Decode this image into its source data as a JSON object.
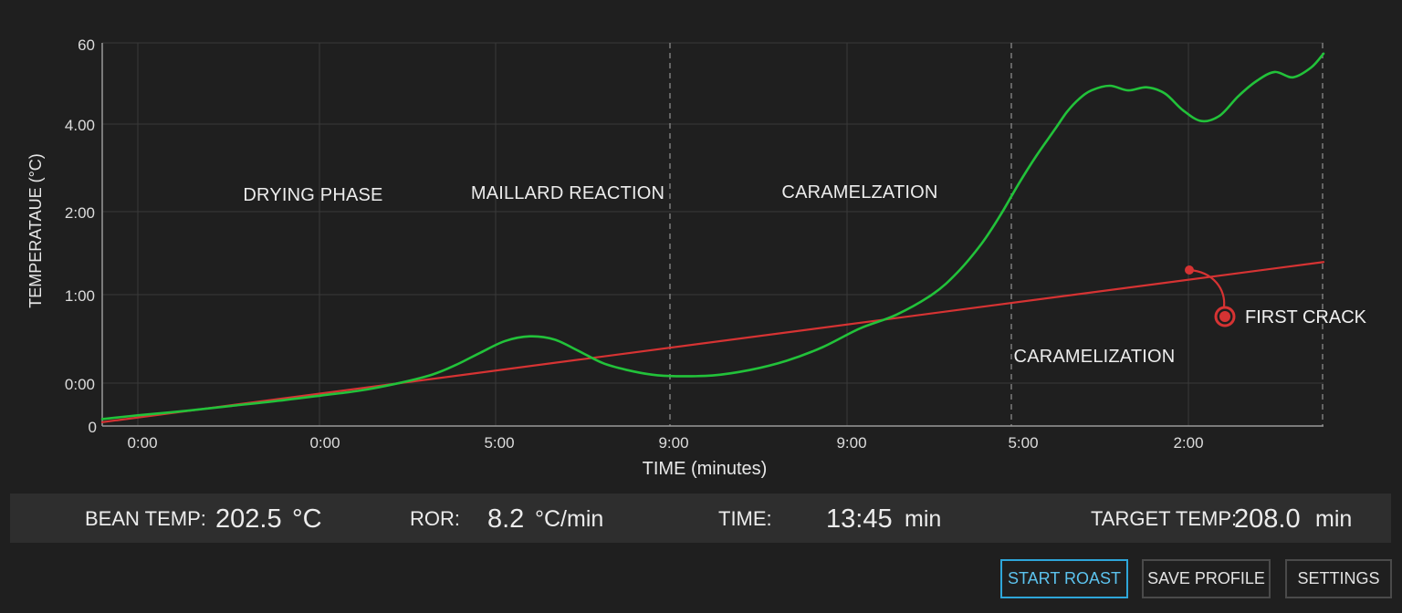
{
  "chart_data": {
    "type": "line",
    "xlabel": "TIME (minutes)",
    "ylabel": "TEMPERATAUE (°C)",
    "x_tick_labels": [
      "0:00",
      "0:00",
      "5:00",
      "9:00",
      "9:00",
      "5:00",
      "2:00"
    ],
    "y_tick_labels": [
      "0",
      "0:00",
      "1:00",
      "2:00",
      "4.00",
      "60"
    ],
    "grid": true,
    "phase_labels": [
      "DRYING PHASE",
      "MAILLARD REACTION",
      "CARAMELZATION",
      "CARAMELIZATION"
    ],
    "series": [
      {
        "color": "#22c23a",
        "x": [
          0,
          0.03,
          0.07,
          0.11,
          0.15,
          0.18,
          0.21,
          0.24,
          0.27,
          0.29,
          0.31,
          0.33,
          0.35,
          0.37,
          0.39,
          0.41,
          0.43,
          0.45,
          0.47,
          0.5,
          0.53,
          0.56,
          0.59,
          0.62,
          0.65,
          0.68,
          0.7,
          0.72,
          0.735,
          0.75,
          0.765,
          0.78,
          0.79,
          0.8,
          0.81,
          0.825,
          0.84,
          0.855,
          0.87,
          0.885,
          0.9,
          0.915,
          0.93,
          0.945,
          0.96,
          0.975,
          0.99,
          1.0
        ],
        "y": [
          0.09,
          0.14,
          0.2,
          0.27,
          0.34,
          0.4,
          0.46,
          0.55,
          0.67,
          0.8,
          0.96,
          1.11,
          1.17,
          1.13,
          0.98,
          0.82,
          0.73,
          0.67,
          0.65,
          0.66,
          0.73,
          0.85,
          1.03,
          1.27,
          1.45,
          1.72,
          2.0,
          2.38,
          2.74,
          3.15,
          3.53,
          3.87,
          4.1,
          4.27,
          4.38,
          4.44,
          4.38,
          4.42,
          4.34,
          4.12,
          3.98,
          4.05,
          4.3,
          4.5,
          4.62,
          4.55,
          4.68,
          4.86
        ]
      },
      {
        "color": "#d63333",
        "x": [
          0,
          1.0
        ],
        "y": [
          0.05,
          2.14
        ]
      }
    ],
    "annotations": [
      {
        "text": "FIRST CRACK",
        "x": 0.89,
        "y": 1.78,
        "color": "#d63333"
      }
    ]
  },
  "status": {
    "bean_temp_label": "BEAN TEMP:",
    "bean_temp_value": "202.5",
    "bean_temp_unit": "°C",
    "ror_label": "ROR:",
    "ror_value": "8.2",
    "ror_unit": "°C/min",
    "time_label": "TIME:",
    "time_value": "13:45",
    "time_unit": "min",
    "target_label": "TARGET TEMP:",
    "target_value": "208.0",
    "target_unit": "min"
  },
  "buttons": {
    "start": "START ROAST",
    "save": "SAVE PROFILE",
    "settings": "SETTINGS"
  },
  "colors": {
    "background": "#1f1f1f",
    "panel": "#2e2e2e",
    "bean_curve": "#22c23a",
    "target_line": "#d63333",
    "accent": "#2ea6d9"
  }
}
